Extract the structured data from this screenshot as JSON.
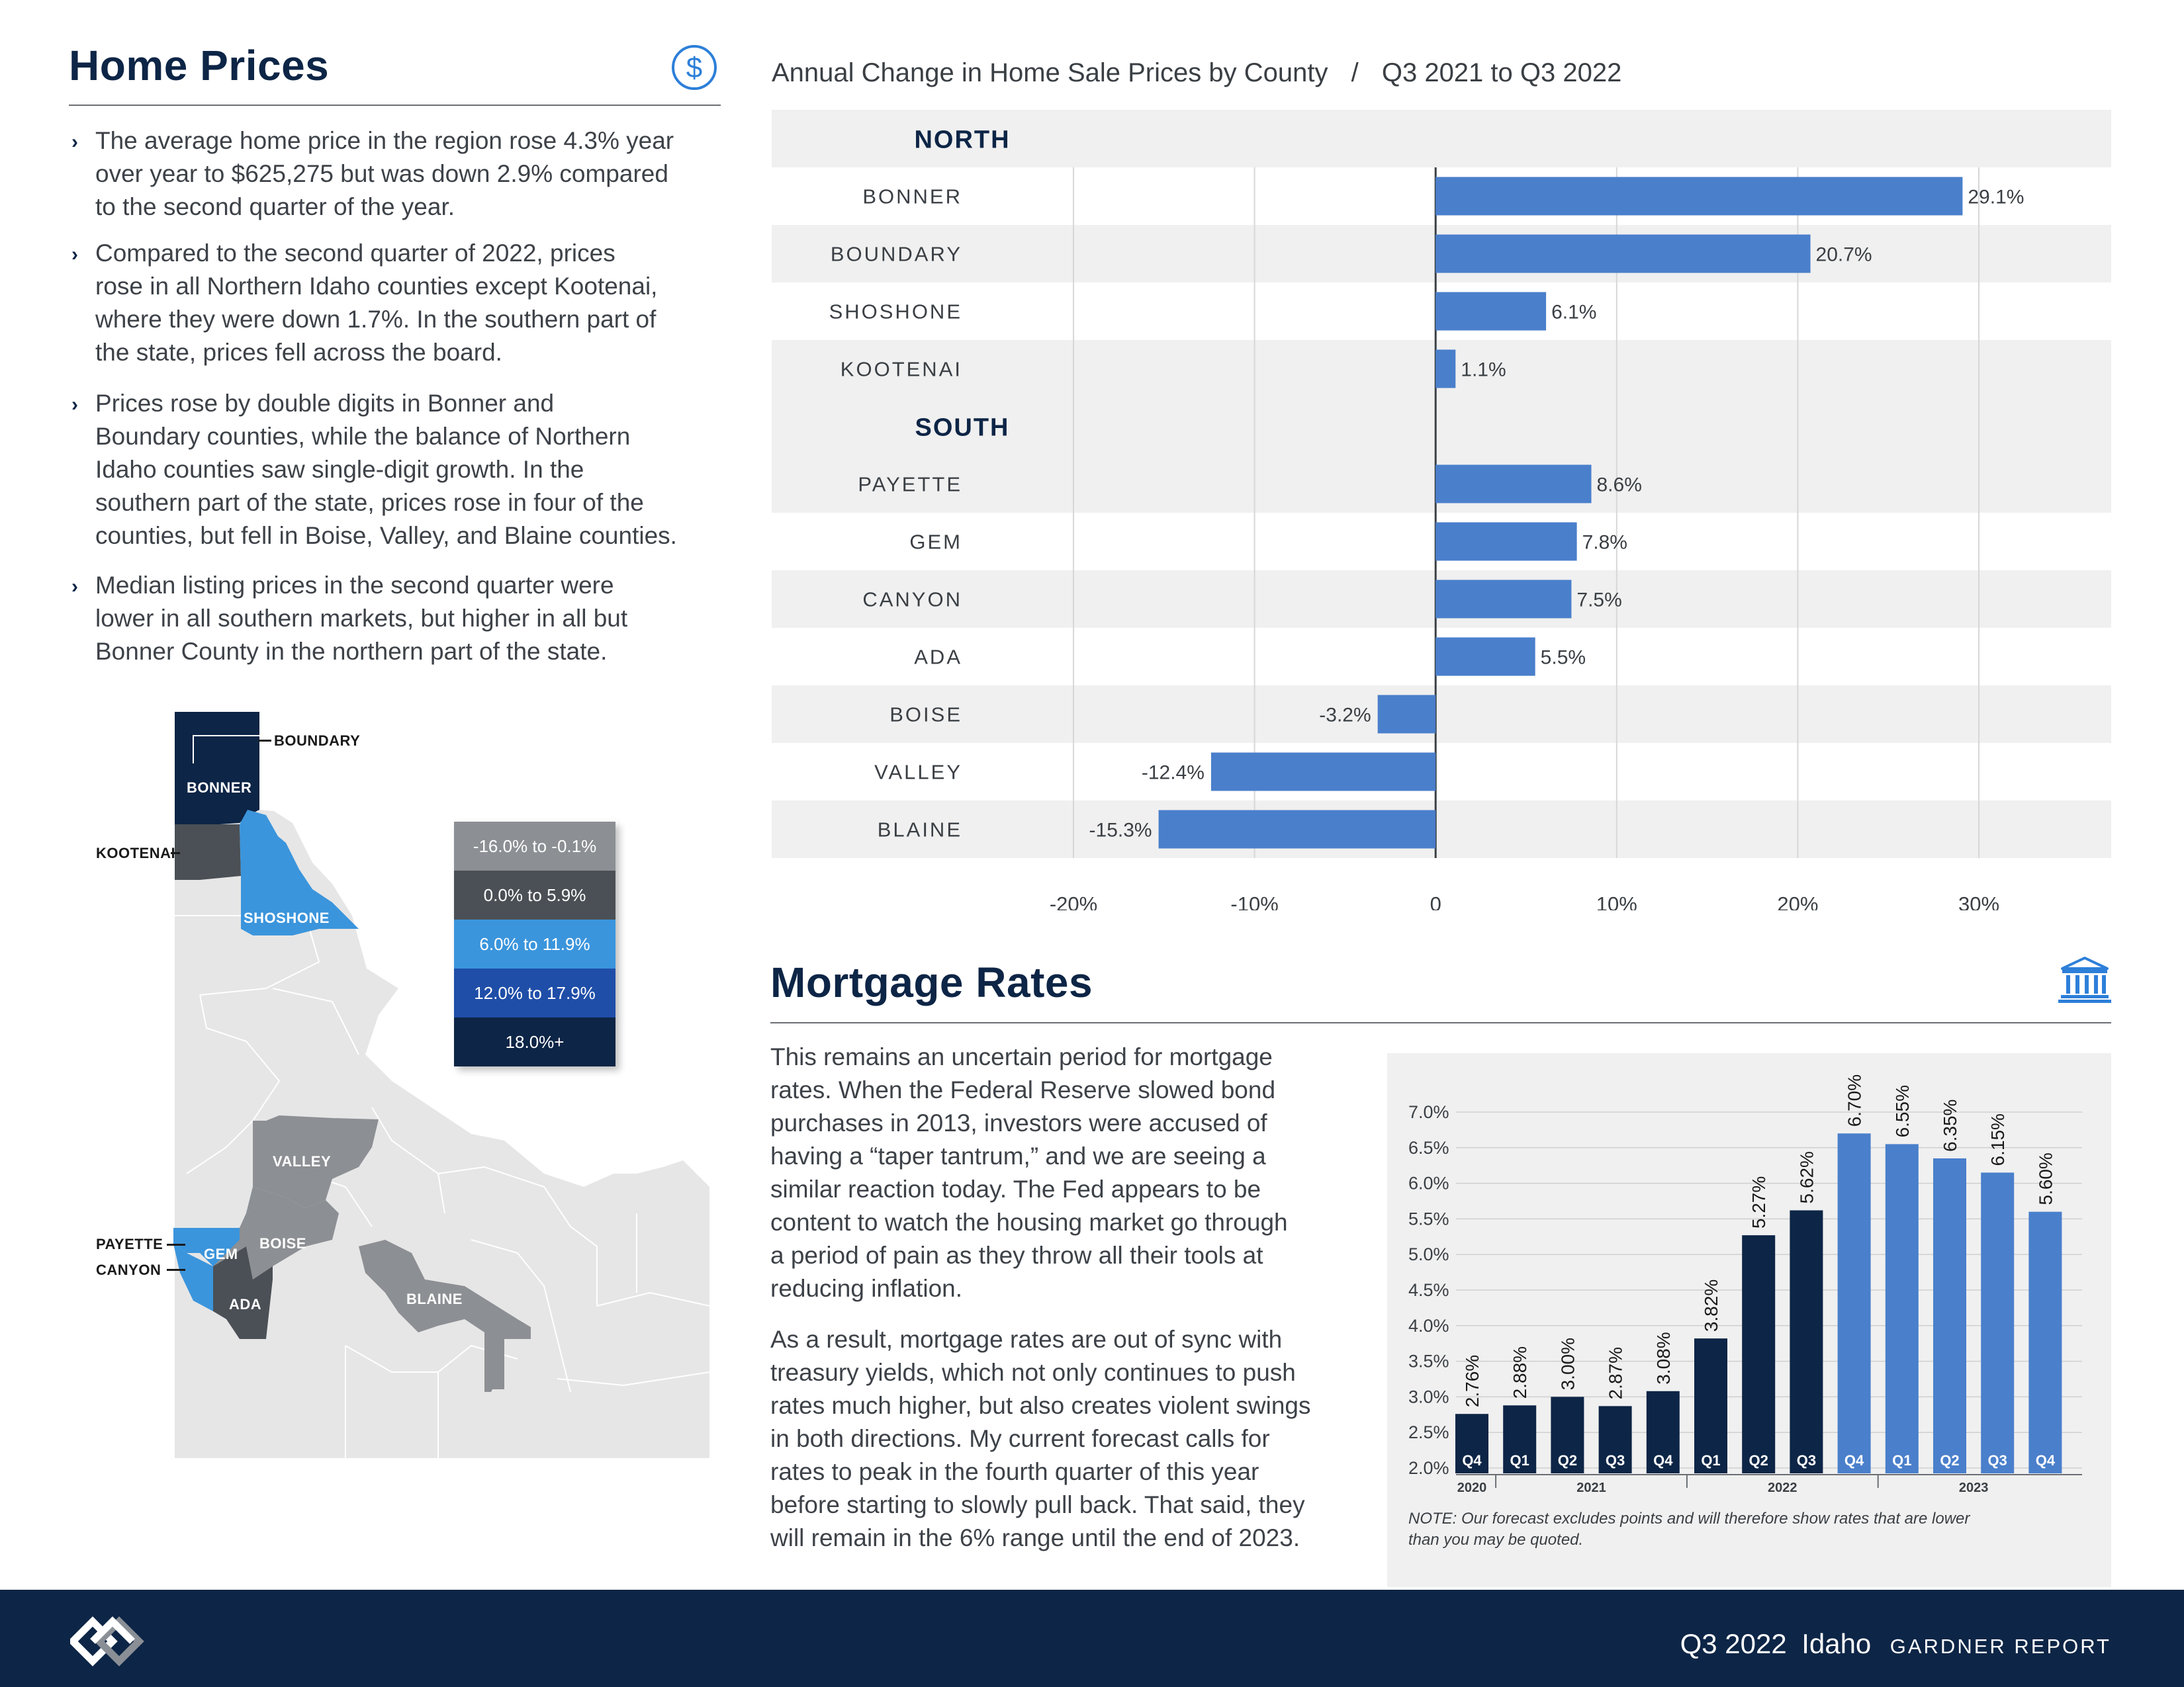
{
  "home_prices": {
    "title": "Home Prices",
    "icon": "dollar-circle-icon",
    "bullets": [
      [
        "The average home price in the region rose 4.3% year",
        "over year to $625,275 but was down 2.9% compared",
        "to the second quarter of the year."
      ],
      [
        "Compared to the second quarter of 2022, prices",
        "rose in all Northern Idaho counties except Kootenai,",
        "where they were down 1.7%. In the southern part of",
        "the state, prices fell across the board."
      ],
      [
        "Prices rose by double digits in Bonner and",
        "Boundary counties, while the balance of Northern",
        "Idaho counties saw single-digit growth. In the",
        "southern part of the state, prices rose in four of the",
        "counties, but fell in Boise, Valley, and Blaine counties."
      ],
      [
        "Median listing prices in the second quarter were",
        "lower in all southern markets, but higher in all but",
        "Bonner County in the northern part of the state."
      ]
    ]
  },
  "map": {
    "labels": {
      "boundary": "BOUNDARY",
      "bonner": "BONNER",
      "kootenai": "KOOTENAI",
      "shoshone": "SHOSHONE",
      "valley": "VALLEY",
      "payette": "PAYETTE",
      "canyon": "CANYON",
      "gem": "GEM",
      "boise": "BOISE",
      "ada": "ADA",
      "blaine": "BLAINE"
    },
    "legend": [
      {
        "label": "-16.0% to -0.1%",
        "color": "#8c8f93"
      },
      {
        "label": "0.0% to 5.9%",
        "color": "#4b5056"
      },
      {
        "label": "6.0% to 11.9%",
        "color": "#3b95dc"
      },
      {
        "label": "12.0% to 17.9%",
        "color": "#1f4ea8"
      },
      {
        "label": "18.0%+",
        "color": "#0d2546"
      }
    ]
  },
  "bar_chart": {
    "title": "Annual Change in Home Sale Prices by County",
    "separator": "/",
    "period": "Q3 2021 to Q3 2022",
    "bar_color": "#4a7fcb"
  },
  "mortgage": {
    "title": "Mortgage Rates",
    "icon": "bank-building-icon",
    "para1": [
      "This remains an uncertain period for mortgage",
      "rates. When the Federal Reserve slowed bond",
      "purchases in 2013, investors were accused of",
      "having a “taper tantrum,” and we are seeing a",
      "similar reaction today. The Fed appears to be",
      "content to watch the housing market go through",
      "a period of pain as they throw all their tools at",
      "reducing inflation."
    ],
    "para2": [
      "As a result, mortgage rates are out of sync with",
      "treasury yields, which not only continues to push",
      "rates much higher, but also creates violent swings",
      "in both directions. My current forecast calls for",
      "rates to peak in the fourth quarter of this year",
      "before starting to slowly pull back. That said, they",
      "will remain in the 6% range until the end of 2023."
    ],
    "note": [
      "NOTE: Our forecast excludes points and will therefore show rates that are lower",
      "than you may be quoted."
    ],
    "actual_color": "#0d2546",
    "forecast_color": "#4a7fcb"
  },
  "chart_data": [
    {
      "type": "bar",
      "orientation": "horizontal",
      "title": "Annual Change in Home Sale Prices by County",
      "subtitle": "Q3 2021 to Q3 2022",
      "groups": [
        {
          "name": "NORTH",
          "categories": [
            "BONNER",
            "BOUNDARY",
            "SHOSHONE",
            "KOOTENAI"
          ],
          "values": [
            29.1,
            20.7,
            6.1,
            1.1
          ]
        },
        {
          "name": "SOUTH",
          "categories": [
            "PAYETTE",
            "GEM",
            "CANYON",
            "ADA",
            "BOISE",
            "VALLEY",
            "BLAINE"
          ],
          "values": [
            8.6,
            7.8,
            7.5,
            5.5,
            -3.2,
            -12.4,
            -15.3
          ]
        }
      ],
      "value_suffix": "%",
      "xlim": [
        -20,
        30
      ],
      "xticks": [
        "-20%",
        "-10%",
        "0",
        "10%",
        "20%",
        "30%"
      ],
      "grid": true
    },
    {
      "type": "bar",
      "title": "",
      "categories": [
        "Q4",
        "Q1",
        "Q2",
        "Q3",
        "Q4",
        "Q1",
        "Q2",
        "Q3",
        "Q4",
        "Q1",
        "Q2",
        "Q3",
        "Q4"
      ],
      "years": [
        {
          "label": "2020",
          "start": 0,
          "count": 1
        },
        {
          "label": "2021",
          "start": 1,
          "count": 4
        },
        {
          "label": "2022",
          "start": 5,
          "count": 4
        },
        {
          "label": "2023",
          "start": 9,
          "count": 4
        }
      ],
      "values": [
        2.76,
        2.88,
        3.0,
        2.87,
        3.08,
        3.82,
        5.27,
        5.62,
        6.7,
        6.55,
        6.35,
        6.15,
        5.6
      ],
      "value_labels": [
        "2.76%",
        "2.88%",
        "3.00%",
        "2.87%",
        "3.08%",
        "3.82%",
        "5.27%",
        "5.62%",
        "6.70%",
        "6.55%",
        "6.35%",
        "6.15%",
        "5.60%"
      ],
      "forecast_from_index": 8,
      "ylim": [
        2.0,
        7.0
      ],
      "yticks": [
        "2.0%",
        "2.5%",
        "3.0%",
        "3.5%",
        "4.0%",
        "4.5%",
        "5.0%",
        "5.5%",
        "6.0%",
        "6.5%",
        "7.0%"
      ],
      "grid": true
    }
  ],
  "footer": {
    "logo": "windermere-logo-icon",
    "period": "Q3 2022",
    "state": "Idaho",
    "report": "GARDNER REPORT"
  }
}
